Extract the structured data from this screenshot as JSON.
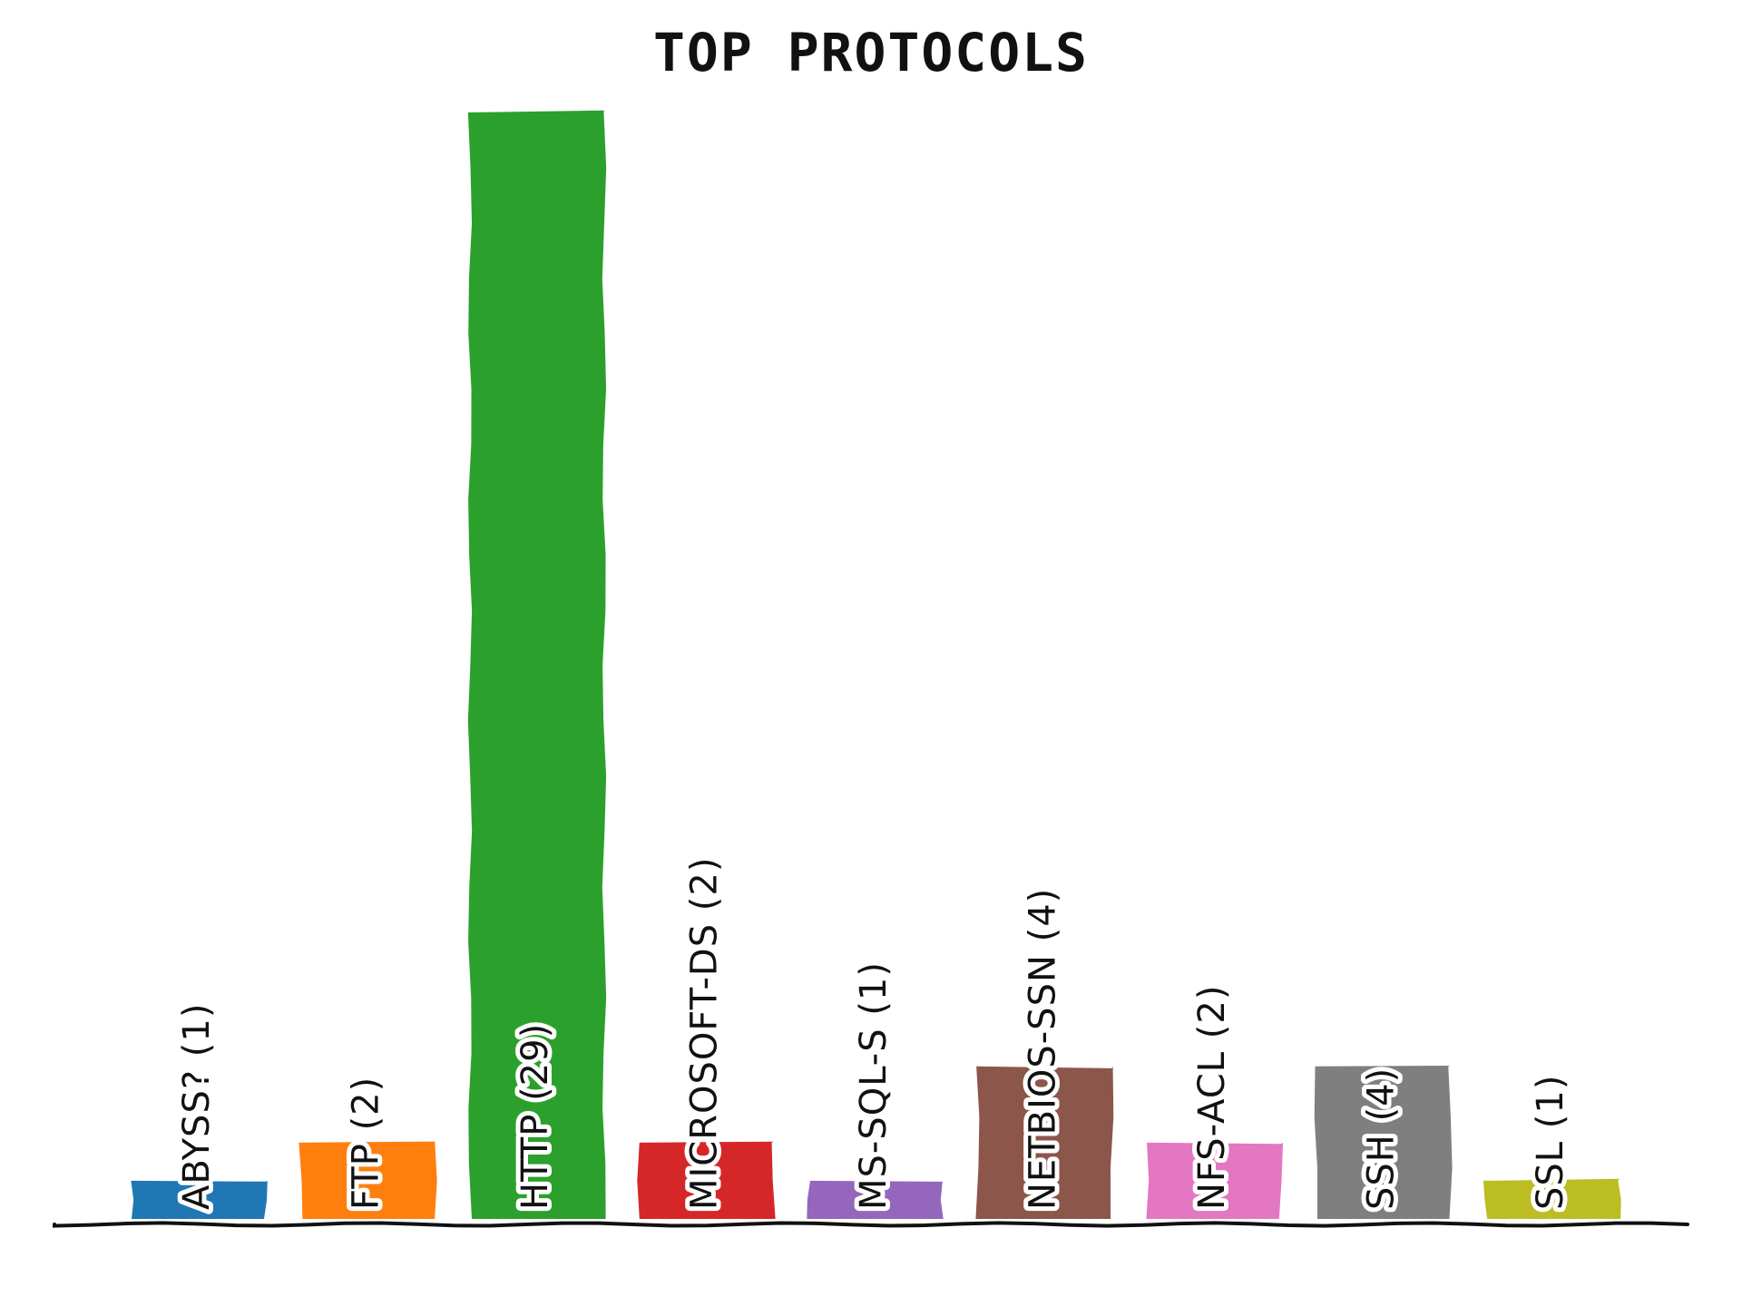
{
  "chart_data": {
    "type": "bar",
    "title": "TOP PROTOCOLS",
    "xlabel": "",
    "ylabel": "",
    "ylim": [
      0,
      29
    ],
    "grid": false,
    "legend": "none",
    "categories": [
      "ABYSS?",
      "FTP",
      "HTTP",
      "MICROSOFT-DS",
      "MS-SQL-S",
      "NETBIOS-SSN",
      "NFS-ACL",
      "SSH",
      "SSL"
    ],
    "values": [
      1,
      2,
      29,
      2,
      1,
      4,
      2,
      4,
      1
    ],
    "labels": [
      "ABYSS? (1)",
      "FTP (2)",
      "HTTP (29)",
      "MICROSOFT-DS (2)",
      "MS-SQL-S (1)",
      "NETBIOS-SSN (4)",
      "NFS-ACL (2)",
      "SSH (4)",
      "SSL (1)"
    ],
    "colors": [
      "#1f77b4",
      "#ff7f0e",
      "#2ca02c",
      "#d62728",
      "#9467bd",
      "#8c564b",
      "#e377c2",
      "#7f7f7f",
      "#bcbd22"
    ]
  }
}
